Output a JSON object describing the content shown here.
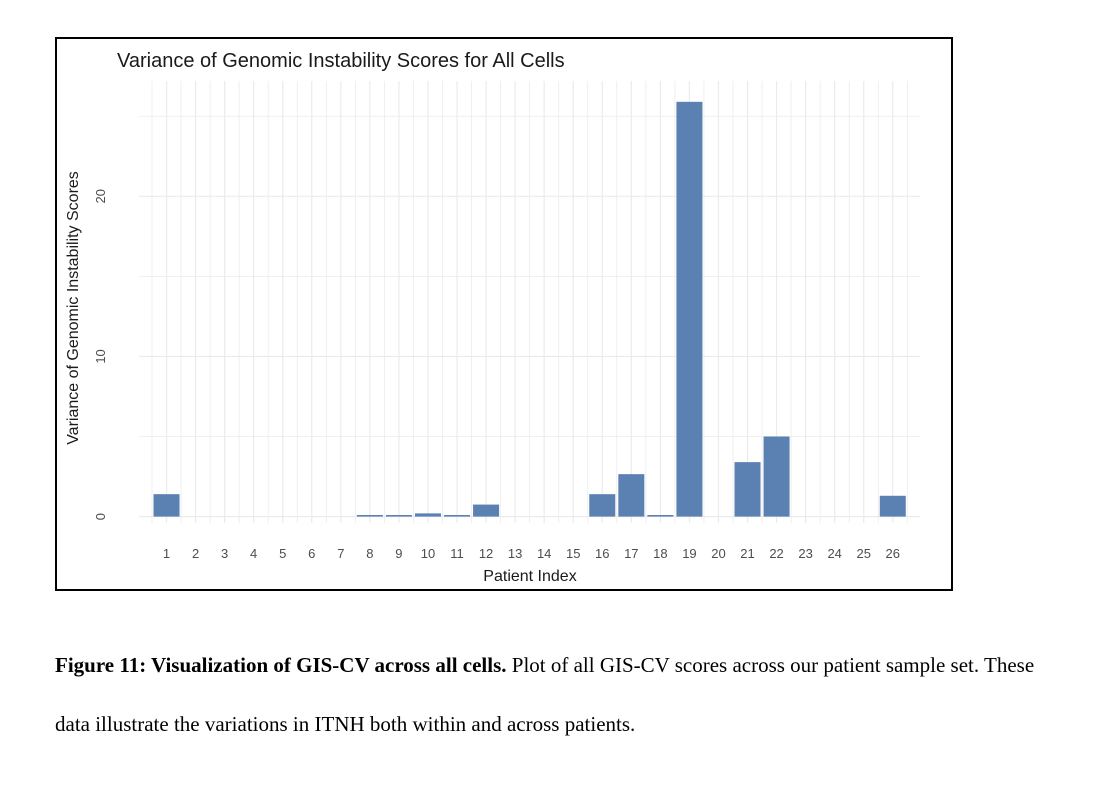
{
  "chart_data": {
    "type": "bar",
    "title": "Variance of Genomic Instability Scores for All Cells",
    "xlabel": "Patient Index",
    "ylabel": "Variance of Genomic Instability Scores",
    "categories": [
      "1",
      "2",
      "3",
      "4",
      "5",
      "6",
      "7",
      "8",
      "9",
      "10",
      "11",
      "12",
      "13",
      "14",
      "15",
      "16",
      "17",
      "18",
      "19",
      "20",
      "21",
      "22",
      "23",
      "24",
      "25",
      "26"
    ],
    "values": [
      1.4,
      0,
      0,
      0,
      0,
      0,
      0,
      0.1,
      0.1,
      0.2,
      0.1,
      0.75,
      0,
      0,
      0,
      1.4,
      2.65,
      0.1,
      25.9,
      0,
      3.4,
      5.0,
      0,
      0,
      0,
      1.3
    ],
    "ylim": [
      -0.4,
      27.2
    ],
    "yticks": [
      0,
      10,
      20
    ],
    "grid": true,
    "bar_color": "#5b80b2",
    "grid_color": "#ebebeb"
  },
  "caption": {
    "bold": "Figure 11: Visualization of GIS-CV across all cells.",
    "text": " Plot of all GIS-CV scores across our patient sample set. These data illustrate the variations in ITNH both within and across patients."
  }
}
